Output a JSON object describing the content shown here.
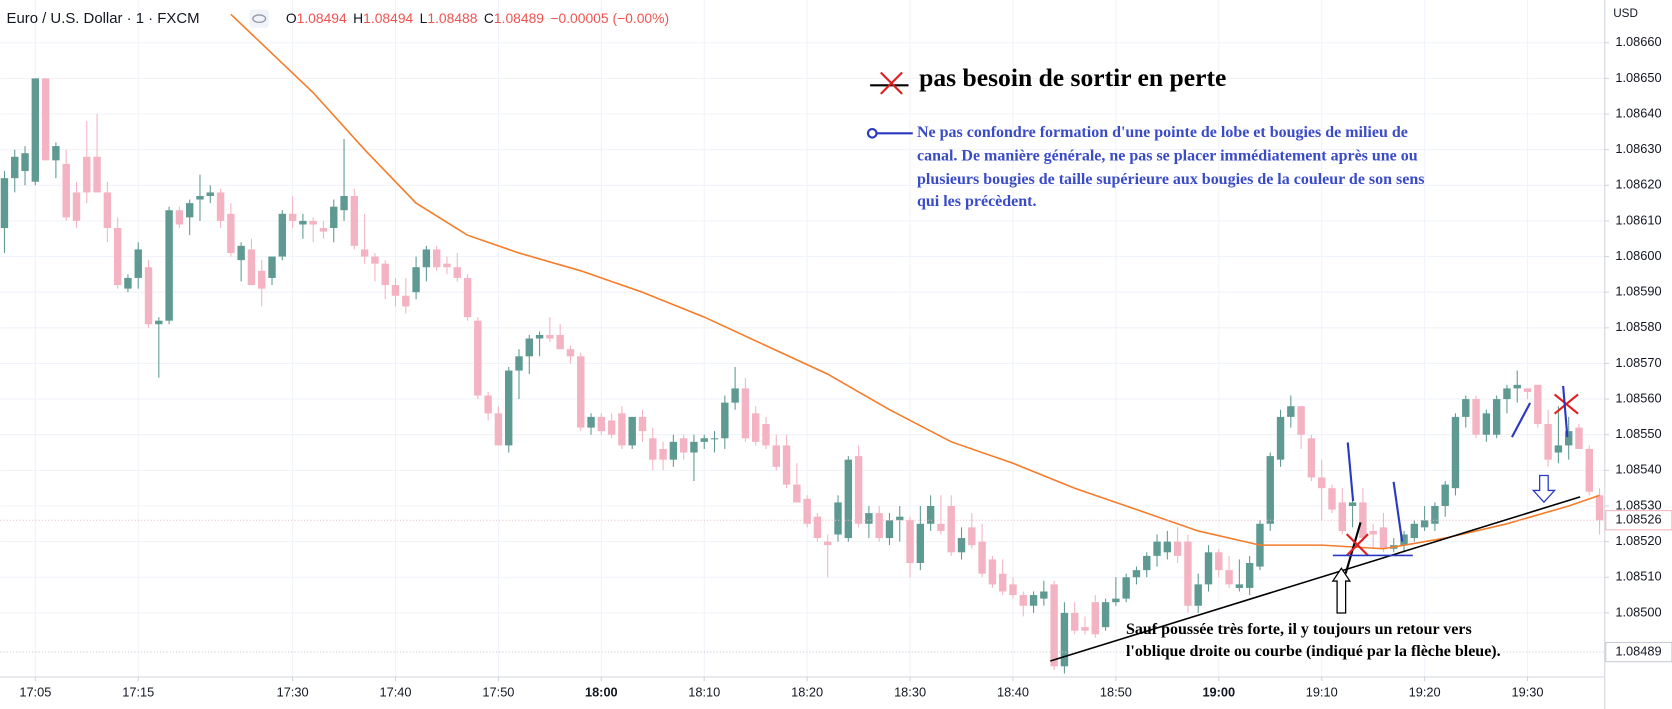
{
  "chart_data": {
    "type": "candlestick",
    "header": {
      "symbol": "Euro / U.S. Dollar · 1 · FXCM",
      "items": [
        {
          "label": "O",
          "value": "1.08494"
        },
        {
          "label": "H",
          "value": "1.08494"
        },
        {
          "label": "L",
          "value": "1.08488"
        },
        {
          "label": "C",
          "value": "1.08489"
        }
      ],
      "change": "−0.00005 (−0.00%)"
    },
    "currency": "USD",
    "annotations": {
      "title": "pas besoin de sortir en perte",
      "note": [
        "Ne pas confondre formation d'une pointe de lobe et bougies de milieu de",
        "canal. De manière générale, ne pas se placer immédiatement après une ou",
        "plusieurs bougies de taille supérieure aux bougies de la couleur de son sens",
        "qui les précèdent."
      ],
      "bottom": [
        "Sauf poussée très forte, il y toujours un retour vers",
        "l'oblique droite ou courbe (indiqué par la flèche bleue)."
      ]
    },
    "up_color": "#5f9a92",
    "down_color": "#f4b3c2",
    "ohlc": [
      [
        1.08608,
        1.08624,
        1.08601,
        1.08622
      ],
      [
        1.08622,
        1.0863,
        1.08618,
        1.08628
      ],
      [
        1.08624,
        1.08631,
        1.0862,
        1.08629
      ],
      [
        1.08621,
        1.0865,
        1.0862,
        1.0865
      ],
      [
        1.0865,
        1.0865,
        1.08627,
        1.08627
      ],
      [
        1.08627,
        1.08632,
        1.08622,
        1.08631
      ],
      [
        1.08626,
        1.0863,
        1.0861,
        1.08611
      ],
      [
        1.08618,
        1.08621,
        1.08608,
        1.0861
      ],
      [
        1.08628,
        1.08638,
        1.08615,
        1.08618
      ],
      [
        1.08628,
        1.0864,
        1.08618,
        1.08618
      ],
      [
        1.08618,
        1.08621,
        1.08604,
        1.08608
      ],
      [
        1.08608,
        1.08611,
        1.08591,
        1.08592
      ],
      [
        1.08591,
        1.08595,
        1.0859,
        1.08594
      ],
      [
        1.08594,
        1.08604,
        1.08591,
        1.08602
      ],
      [
        1.08597,
        1.08599,
        1.0858,
        1.08581
      ],
      [
        1.08581,
        1.08583,
        1.08566,
        1.08582
      ],
      [
        1.08582,
        1.08614,
        1.08581,
        1.08613
      ],
      [
        1.08613,
        1.08614,
        1.08608,
        1.08609
      ],
      [
        1.08611,
        1.08616,
        1.08606,
        1.08615
      ],
      [
        1.08616,
        1.08623,
        1.0861,
        1.08617
      ],
      [
        1.08617,
        1.0862,
        1.08615,
        1.08618
      ],
      [
        1.08618,
        1.08619,
        1.08608,
        1.0861
      ],
      [
        1.08612,
        1.08615,
        1.086,
        1.08601
      ],
      [
        1.08599,
        1.08604,
        1.08593,
        1.08603
      ],
      [
        1.08602,
        1.08605,
        1.08592,
        1.08592
      ],
      [
        1.08596,
        1.08599,
        1.08586,
        1.08591
      ],
      [
        1.08594,
        1.086,
        1.08592,
        1.086
      ],
      [
        1.086,
        1.08613,
        1.08599,
        1.08612
      ],
      [
        1.08612,
        1.08617,
        1.08608,
        1.0861
      ],
      [
        1.08609,
        1.08612,
        1.08605,
        1.0861
      ],
      [
        1.0861,
        1.08611,
        1.08604,
        1.08609
      ],
      [
        1.08608,
        1.0861,
        1.08605,
        1.08607
      ],
      [
        1.08608,
        1.08616,
        1.08604,
        1.08614
      ],
      [
        1.08613,
        1.08633,
        1.0861,
        1.08617
      ],
      [
        1.08617,
        1.08619,
        1.08602,
        1.08603
      ],
      [
        1.08602,
        1.08612,
        1.08598,
        1.086
      ],
      [
        1.086,
        1.08601,
        1.08593,
        1.08598
      ],
      [
        1.08598,
        1.08599,
        1.08588,
        1.08592
      ],
      [
        1.08592,
        1.08594,
        1.08586,
        1.08589
      ],
      [
        1.08589,
        1.08594,
        1.08584,
        1.08586
      ],
      [
        1.0859,
        1.086,
        1.08588,
        1.08597
      ],
      [
        1.08597,
        1.08603,
        1.08593,
        1.08602
      ],
      [
        1.08602,
        1.08603,
        1.08596,
        1.08597
      ],
      [
        1.08598,
        1.086,
        1.08595,
        1.08597
      ],
      [
        1.08597,
        1.08601,
        1.08593,
        1.08594
      ],
      [
        1.08594,
        1.08595,
        1.08582,
        1.08583
      ],
      [
        1.08582,
        1.08583,
        1.0856,
        1.08561
      ],
      [
        1.08561,
        1.08562,
        1.08554,
        1.08556
      ],
      [
        1.08556,
        1.08558,
        1.08547,
        1.08547
      ],
      [
        1.08547,
        1.08569,
        1.08545,
        1.08568
      ],
      [
        1.08568,
        1.08574,
        1.0856,
        1.08572
      ],
      [
        1.08572,
        1.08578,
        1.08567,
        1.08577
      ],
      [
        1.08577,
        1.08579,
        1.08572,
        1.08578
      ],
      [
        1.08578,
        1.08583,
        1.08576,
        1.08577
      ],
      [
        1.08578,
        1.08581,
        1.08574,
        1.08574
      ],
      [
        1.08574,
        1.08575,
        1.0857,
        1.08572
      ],
      [
        1.08572,
        1.08573,
        1.08551,
        1.08552
      ],
      [
        1.08552,
        1.08556,
        1.0855,
        1.08555
      ],
      [
        1.08555,
        1.08556,
        1.0855,
        1.08551
      ],
      [
        1.08554,
        1.08556,
        1.08549,
        1.0855
      ],
      [
        1.08556,
        1.08558,
        1.08546,
        1.08547
      ],
      [
        1.08547,
        1.08555,
        1.08546,
        1.08555
      ],
      [
        1.08555,
        1.08557,
        1.08548,
        1.08551
      ],
      [
        1.08549,
        1.08552,
        1.0854,
        1.08543
      ],
      [
        1.08546,
        1.08548,
        1.0854,
        1.08543
      ],
      [
        1.08543,
        1.0855,
        1.08541,
        1.08548
      ],
      [
        1.08549,
        1.0855,
        1.08543,
        1.08545
      ],
      [
        1.08545,
        1.0855,
        1.08537,
        1.08548
      ],
      [
        1.08548,
        1.0855,
        1.08546,
        1.08549
      ],
      [
        1.08549,
        1.08551,
        1.08545,
        1.08549
      ],
      [
        1.08549,
        1.08561,
        1.08546,
        1.08559
      ],
      [
        1.08559,
        1.08569,
        1.08557,
        1.08563
      ],
      [
        1.08563,
        1.08566,
        1.08548,
        1.08549
      ],
      [
        1.08556,
        1.08558,
        1.08547,
        1.08548
      ],
      [
        1.08553,
        1.08555,
        1.08546,
        1.08547
      ],
      [
        1.08547,
        1.0855,
        1.0854,
        1.08541
      ],
      [
        1.08547,
        1.0855,
        1.08535,
        1.08536
      ],
      [
        1.08536,
        1.08542,
        1.08531,
        1.08531
      ],
      [
        1.08532,
        1.08533,
        1.08524,
        1.08525
      ],
      [
        1.08527,
        1.08528,
        1.0852,
        1.08521
      ],
      [
        1.0852,
        1.08522,
        1.0851,
        1.08519
      ],
      [
        1.08522,
        1.08533,
        1.0852,
        1.08531
      ],
      [
        1.08521,
        1.08544,
        1.0852,
        1.08543
      ],
      [
        1.08544,
        1.08547,
        1.08524,
        1.08525
      ],
      [
        1.08525,
        1.0853,
        1.08521,
        1.08528
      ],
      [
        1.08528,
        1.0853,
        1.0852,
        1.08521
      ],
      [
        1.08521,
        1.08528,
        1.08519,
        1.08526
      ],
      [
        1.08526,
        1.0853,
        1.0852,
        1.08527
      ],
      [
        1.08526,
        1.08527,
        1.0851,
        1.08514
      ],
      [
        1.08514,
        1.0853,
        1.08512,
        1.08525
      ],
      [
        1.08525,
        1.08533,
        1.08523,
        1.0853
      ],
      [
        1.08525,
        1.08533,
        1.08522,
        1.08523
      ],
      [
        1.0853,
        1.08533,
        1.08516,
        1.08517
      ],
      [
        1.08517,
        1.08524,
        1.08515,
        1.08521
      ],
      [
        1.08524,
        1.08528,
        1.08518,
        1.08519
      ],
      [
        1.0852,
        1.08525,
        1.0851,
        1.08511
      ],
      [
        1.08515,
        1.08516,
        1.08507,
        1.08508
      ],
      [
        1.08511,
        1.08515,
        1.08505,
        1.08506
      ],
      [
        1.08508,
        1.0851,
        1.08504,
        1.08505
      ],
      [
        1.08505,
        1.08506,
        1.08499,
        1.08502
      ],
      [
        1.08502,
        1.08506,
        1.085,
        1.08505
      ],
      [
        1.08504,
        1.08509,
        1.08502,
        1.08506
      ],
      [
        1.08508,
        1.08509,
        1.08484,
        1.08485
      ],
      [
        1.08485,
        1.08503,
        1.08483,
        1.085
      ],
      [
        1.085,
        1.08503,
        1.08494,
        1.08495
      ],
      [
        1.08496,
        1.08499,
        1.08494,
        1.08495
      ],
      [
        1.08503,
        1.08505,
        1.08493,
        1.08494
      ],
      [
        1.08496,
        1.08504,
        1.08495,
        1.08503
      ],
      [
        1.08503,
        1.0851,
        1.08502,
        1.08504
      ],
      [
        1.08504,
        1.08511,
        1.08503,
        1.0851
      ],
      [
        1.0851,
        1.08513,
        1.08508,
        1.08512
      ],
      [
        1.08512,
        1.08517,
        1.0851,
        1.08516
      ],
      [
        1.08516,
        1.08522,
        1.08513,
        1.0852
      ],
      [
        1.08517,
        1.08523,
        1.08515,
        1.0852
      ],
      [
        1.0852,
        1.08524,
        1.08514,
        1.08516
      ],
      [
        1.0852,
        1.08522,
        1.085,
        1.08502
      ],
      [
        1.08502,
        1.08511,
        1.085,
        1.08508
      ],
      [
        1.08508,
        1.08519,
        1.08506,
        1.08517
      ],
      [
        1.08517,
        1.08518,
        1.0851,
        1.08512
      ],
      [
        1.08512,
        1.08516,
        1.08507,
        1.08508
      ],
      [
        1.08507,
        1.08515,
        1.08506,
        1.08508
      ],
      [
        1.08507,
        1.08516,
        1.08505,
        1.08514
      ],
      [
        1.08513,
        1.08526,
        1.08512,
        1.08525
      ],
      [
        1.08525,
        1.08545,
        1.08523,
        1.08544
      ],
      [
        1.08543,
        1.08557,
        1.08541,
        1.08555
      ],
      [
        1.08555,
        1.08561,
        1.08552,
        1.08558
      ],
      [
        1.08558,
        1.08558,
        1.08546,
        1.0855
      ],
      [
        1.08549,
        1.0855,
        1.08537,
        1.08538
      ],
      [
        1.08538,
        1.08543,
        1.08526,
        1.08535
      ],
      [
        1.08535,
        1.08536,
        1.08528,
        1.08529
      ],
      [
        1.08531,
        1.08535,
        1.08522,
        1.08523
      ],
      [
        1.0853,
        1.08532,
        1.08524,
        1.08531
      ],
      [
        1.08531,
        1.08535,
        1.0852,
        1.08521
      ],
      [
        1.08523,
        1.08525,
        1.08518,
        1.08522
      ],
      [
        1.08524,
        1.08528,
        1.08517,
        1.08518
      ],
      [
        1.08518,
        1.08521,
        1.08517,
        1.08519
      ],
      [
        1.08519,
        1.08523,
        1.08517,
        1.08522
      ],
      [
        1.08521,
        1.08526,
        1.0852,
        1.08525
      ],
      [
        1.08524,
        1.0853,
        1.08523,
        1.08526
      ],
      [
        1.08525,
        1.08531,
        1.08523,
        1.0853
      ],
      [
        1.0853,
        1.08537,
        1.08527,
        1.08536
      ],
      [
        1.08535,
        1.08556,
        1.08533,
        1.08555
      ],
      [
        1.08555,
        1.08561,
        1.08552,
        1.0856
      ],
      [
        1.0856,
        1.08561,
        1.08549,
        1.0855
      ],
      [
        1.0855,
        1.08557,
        1.08548,
        1.08556
      ],
      [
        1.0855,
        1.08561,
        1.08549,
        1.0856
      ],
      [
        1.0856,
        1.08564,
        1.08556,
        1.08563
      ],
      [
        1.08563,
        1.08568,
        1.08559,
        1.08564
      ],
      [
        1.08563,
        1.08563,
        1.0856,
        1.08562
      ],
      [
        1.08564,
        1.08564,
        1.08552,
        1.08553
      ],
      [
        1.08553,
        1.08557,
        1.08541,
        1.08543
      ],
      [
        1.08545,
        1.08558,
        1.08542,
        1.08547
      ],
      [
        1.08547,
        1.08555,
        1.08543,
        1.08551
      ],
      [
        1.08552,
        1.08553,
        1.08546,
        1.08546
      ],
      [
        1.08546,
        1.08547,
        1.08533,
        1.08534
      ],
      [
        1.08533,
        1.08535,
        1.08522,
        1.08526
      ]
    ],
    "ma_color": "#f57c2a",
    "ma_x": [
      22,
      30,
      35,
      40,
      45,
      50,
      56,
      62,
      68,
      74,
      80,
      86,
      92,
      98,
      104,
      110,
      116,
      122,
      128,
      134,
      140,
      146,
      152,
      155
    ],
    "ma_values": [
      1.08668,
      1.08646,
      1.0863,
      1.08615,
      1.08606,
      1.08601,
      1.08596,
      1.0859,
      1.08583,
      1.08575,
      1.08567,
      1.08557,
      1.08548,
      1.08542,
      1.08535,
      1.08529,
      1.08523,
      1.08519,
      1.08519,
      1.08518,
      1.08521,
      1.08525,
      1.0853,
      1.08533
    ],
    "price_lines": [
      {
        "value": 1.08526,
        "color": "#f4b3c2"
      },
      {
        "value": 1.08489,
        "color": "#c9ccd6"
      }
    ],
    "xlim": [
      -0.42,
      155.5
    ],
    "ylim": [
      1.08482,
      1.08672
    ],
    "xticks": [
      {
        "value": 3,
        "label": "17:05"
      },
      {
        "value": 13,
        "label": "17:15"
      },
      {
        "value": 28,
        "label": "17:30"
      },
      {
        "value": 38,
        "label": "17:40"
      },
      {
        "value": 48,
        "label": "17:50"
      },
      {
        "value": 58,
        "label": "18:00",
        "bold": true
      },
      {
        "value": 68,
        "label": "18:10"
      },
      {
        "value": 78,
        "label": "18:20"
      },
      {
        "value": 88,
        "label": "18:30"
      },
      {
        "value": 98,
        "label": "18:40"
      },
      {
        "value": 108,
        "label": "18:50"
      },
      {
        "value": 118,
        "label": "19:00",
        "bold": true
      },
      {
        "value": 128,
        "label": "19:10"
      },
      {
        "value": 138,
        "label": "19:20"
      },
      {
        "value": 148,
        "label": "19:30"
      }
    ],
    "yticks": [
      {
        "value": 1.085,
        "label": "1.08500"
      },
      {
        "value": 1.0851,
        "label": "1.08510"
      },
      {
        "value": 1.0852,
        "label": "1.08520"
      },
      {
        "value": 1.0853,
        "label": "1.08530"
      },
      {
        "value": 1.0854,
        "label": "1.08540"
      },
      {
        "value": 1.0855,
        "label": "1.08550"
      },
      {
        "value": 1.0856,
        "label": "1.08560"
      },
      {
        "value": 1.0857,
        "label": "1.08570"
      },
      {
        "value": 1.0858,
        "label": "1.08580"
      },
      {
        "value": 1.0859,
        "label": "1.08590"
      },
      {
        "value": 1.086,
        "label": "1.08600"
      },
      {
        "value": 1.0861,
        "label": "1.08610"
      },
      {
        "value": 1.0862,
        "label": "1.08620"
      },
      {
        "value": 1.0863,
        "label": "1.08630"
      },
      {
        "value": 1.0864,
        "label": "1.08640"
      },
      {
        "value": 1.0865,
        "label": "1.08650"
      },
      {
        "value": 1.0866,
        "label": "1.08660"
      }
    ],
    "grid": true
  }
}
